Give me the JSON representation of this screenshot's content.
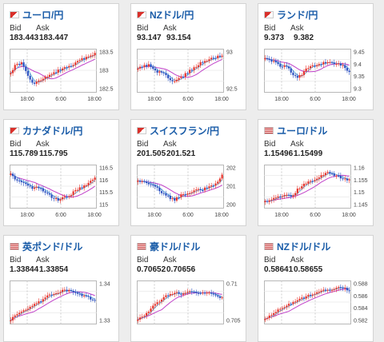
{
  "labels": {
    "bid": "Bid",
    "ask": "Ask"
  },
  "cards": [
    {
      "pair": "ユーロ/円",
      "flag": "flag-eu-jp",
      "bid": "183.443",
      "ask": "183.447",
      "yticks": [
        "183.5",
        "183",
        "182.5"
      ],
      "xticks": [
        "18:00",
        "6:00",
        "18:00"
      ]
    },
    {
      "pair": "NZドル/円",
      "flag": "flag-nz-jp",
      "bid": "93.147",
      "ask": "93.154",
      "yticks": [
        "93",
        "92.5"
      ],
      "xticks": [
        "18:00",
        "6:00",
        "18:00"
      ]
    },
    {
      "pair": "ランド/円",
      "flag": "flag-za-jp",
      "bid": "9.373",
      "ask": "9.382",
      "yticks": [
        "9.45",
        "9.4",
        "9.35",
        "9.3"
      ],
      "xticks": [
        "18:00",
        "6:00",
        "18:00"
      ]
    },
    {
      "pair": "カナダドル/円",
      "flag": "flag-ca-jp",
      "bid": "115.789",
      "ask": "115.795",
      "yticks": [
        "116.5",
        "116",
        "115.5",
        "115"
      ],
      "xticks": [
        "18:00",
        "6:00",
        "18:00"
      ]
    },
    {
      "pair": "スイスフラン/円",
      "flag": "flag-ch-jp",
      "bid": "201.505",
      "ask": "201.521",
      "yticks": [
        "202",
        "201",
        "200"
      ],
      "xticks": [
        "18:00",
        "6:00",
        "18:00"
      ]
    },
    {
      "pair": "ユーロ/ドル",
      "flag": "flag-eu-us",
      "bid": "1.15496",
      "ask": "1.15499",
      "yticks": [
        "1.16",
        "1.155",
        "1.15",
        "1.145"
      ],
      "xticks": [
        "18:00",
        "6:00",
        "18:00"
      ]
    },
    {
      "pair": "英ポンド/ドル",
      "flag": "flag-gb-us",
      "bid": "1.33844",
      "ask": "1.33854",
      "yticks": [
        "1.34",
        "1.33"
      ],
      "xticks": []
    },
    {
      "pair": "豪ドル/ドル",
      "flag": "flag-au-us",
      "bid": "0.70652",
      "ask": "0.70656",
      "yticks": [
        "0.71",
        "0.705"
      ],
      "xticks": []
    },
    {
      "pair": "NZドル/ドル",
      "flag": "flag-nz-us",
      "bid": "0.58641",
      "ask": "0.58655",
      "yticks": [
        "0.588",
        "0.586",
        "0.584",
        "0.582"
      ],
      "xticks": []
    }
  ],
  "colors": {
    "up": "#e8342b",
    "down": "#2a4fc0",
    "ma_short": "#4aa3d8",
    "ma_long": "#c040c8",
    "link": "#1a5ca8"
  }
}
